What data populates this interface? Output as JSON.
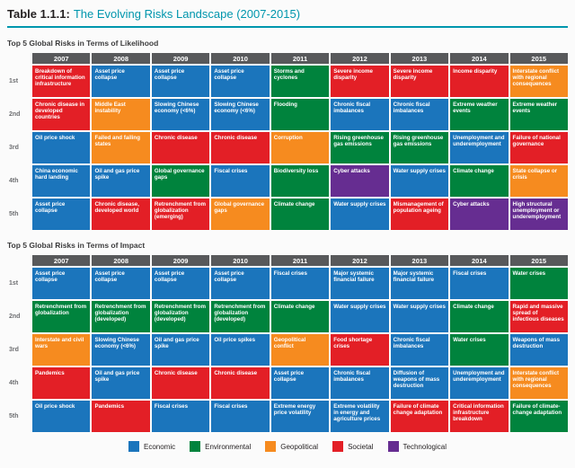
{
  "title": {
    "prefix": "Table 1.1.1:",
    "text": "The Evolving Risks Landscape (2007-2015)"
  },
  "colors": {
    "economic": "#1b75bc",
    "environmental": "#00833d",
    "geopolitical": "#f68b1f",
    "societal": "#e31f26",
    "technological": "#662d91",
    "header_gray": "#58595b",
    "accent_teal": "#0096ad"
  },
  "legend": [
    {
      "label": "Economic",
      "category": "economic"
    },
    {
      "label": "Environmental",
      "category": "environmental"
    },
    {
      "label": "Geopolitical",
      "category": "geopolitical"
    },
    {
      "label": "Societal",
      "category": "societal"
    },
    {
      "label": "Technological",
      "category": "technological"
    }
  ],
  "chart_data": [
    {
      "type": "table",
      "title": "Top 5 Global Risks in Terms of Likelihood",
      "columns": [
        "2007",
        "2008",
        "2009",
        "2010",
        "2011",
        "2012",
        "2013",
        "2014",
        "2015"
      ],
      "rows": [
        "1st",
        "2nd",
        "3rd",
        "4th",
        "5th"
      ],
      "cells": [
        [
          {
            "label": "Breakdown of critical information infrastructure",
            "category": "societal"
          },
          {
            "label": "Asset price collapse",
            "category": "economic"
          },
          {
            "label": "Asset price collapse",
            "category": "economic"
          },
          {
            "label": "Asset price collapse",
            "category": "economic"
          },
          {
            "label": "Storms and cyclones",
            "category": "environmental"
          },
          {
            "label": "Severe income disparity",
            "category": "societal"
          },
          {
            "label": "Severe income disparity",
            "category": "societal"
          },
          {
            "label": "Income disparity",
            "category": "societal"
          },
          {
            "label": "Interstate conflict with regional consequences",
            "category": "geopolitical"
          }
        ],
        [
          {
            "label": "Chronic disease in developed countries",
            "category": "societal"
          },
          {
            "label": "Middle East instability",
            "category": "geopolitical"
          },
          {
            "label": "Slowing Chinese economy (<6%)",
            "category": "economic"
          },
          {
            "label": "Slowing Chinese economy (<6%)",
            "category": "economic"
          },
          {
            "label": "Flooding",
            "category": "environmental"
          },
          {
            "label": "Chronic fiscal imbalances",
            "category": "economic"
          },
          {
            "label": "Chronic fiscal imbalances",
            "category": "economic"
          },
          {
            "label": "Extreme weather events",
            "category": "environmental"
          },
          {
            "label": "Extreme weather events",
            "category": "environmental"
          }
        ],
        [
          {
            "label": "Oil price shock",
            "category": "economic"
          },
          {
            "label": "Failed and failing states",
            "category": "geopolitical"
          },
          {
            "label": "Chronic disease",
            "category": "societal"
          },
          {
            "label": "Chronic disease",
            "category": "societal"
          },
          {
            "label": "Corruption",
            "category": "geopolitical"
          },
          {
            "label": "Rising greenhouse gas emissions",
            "category": "environmental"
          },
          {
            "label": "Rising greenhouse gas emissions",
            "category": "environmental"
          },
          {
            "label": "Unemployment and underemployment",
            "category": "economic"
          },
          {
            "label": "Failure of national governance",
            "category": "societal"
          }
        ],
        [
          {
            "label": "China economic hard landing",
            "category": "economic"
          },
          {
            "label": "Oil and gas price spike",
            "category": "economic"
          },
          {
            "label": "Global governance gaps",
            "category": "environmental"
          },
          {
            "label": "Fiscal crises",
            "category": "economic"
          },
          {
            "label": "Biodiversity loss",
            "category": "environmental"
          },
          {
            "label": "Cyber attacks",
            "category": "technological"
          },
          {
            "label": "Water supply crises",
            "category": "economic"
          },
          {
            "label": "Climate change",
            "category": "environmental"
          },
          {
            "label": "State collapse or crisis",
            "category": "geopolitical"
          }
        ],
        [
          {
            "label": "Asset price collapse",
            "category": "economic"
          },
          {
            "label": "Chronic disease, developed world",
            "category": "societal"
          },
          {
            "label": "Retrenchment from globalization (emerging)",
            "category": "societal"
          },
          {
            "label": "Global governance gaps",
            "category": "geopolitical"
          },
          {
            "label": "Climate change",
            "category": "environmental"
          },
          {
            "label": "Water supply crises",
            "category": "economic"
          },
          {
            "label": "Mismanagement of population ageing",
            "category": "societal"
          },
          {
            "label": "Cyber attacks",
            "category": "technological"
          },
          {
            "label": "High structural unemployment or underemployment",
            "category": "technological"
          }
        ]
      ]
    },
    {
      "type": "table",
      "title": "Top 5 Global Risks in Terms of Impact",
      "columns": [
        "2007",
        "2008",
        "2009",
        "2010",
        "2011",
        "2012",
        "2013",
        "2014",
        "2015"
      ],
      "rows": [
        "1st",
        "2nd",
        "3rd",
        "4th",
        "5th"
      ],
      "cells": [
        [
          {
            "label": "Asset price collapse",
            "category": "economic"
          },
          {
            "label": "Asset price collapse",
            "category": "economic"
          },
          {
            "label": "Asset price collapse",
            "category": "economic"
          },
          {
            "label": "Asset price collapse",
            "category": "economic"
          },
          {
            "label": "Fiscal crises",
            "category": "economic"
          },
          {
            "label": "Major systemic financial failure",
            "category": "economic"
          },
          {
            "label": "Major systemic financial failure",
            "category": "economic"
          },
          {
            "label": "Fiscal crises",
            "category": "economic"
          },
          {
            "label": "Water crises",
            "category": "environmental"
          }
        ],
        [
          {
            "label": "Retrenchment from globalization",
            "category": "environmental"
          },
          {
            "label": "Retrenchment from globalization (developed)",
            "category": "environmental"
          },
          {
            "label": "Retrenchment from globalization (developed)",
            "category": "environmental"
          },
          {
            "label": "Retrenchment from globalization (developed)",
            "category": "environmental"
          },
          {
            "label": "Climate change",
            "category": "environmental"
          },
          {
            "label": "Water supply crises",
            "category": "economic"
          },
          {
            "label": "Water supply crises",
            "category": "economic"
          },
          {
            "label": "Climate change",
            "category": "environmental"
          },
          {
            "label": "Rapid and massive spread of infectious diseases",
            "category": "societal"
          }
        ],
        [
          {
            "label": "Interstate and civil wars",
            "category": "geopolitical"
          },
          {
            "label": "Slowing Chinese economy (<6%)",
            "category": "economic"
          },
          {
            "label": "Oil and gas price spike",
            "category": "economic"
          },
          {
            "label": "Oil price spikes",
            "category": "economic"
          },
          {
            "label": "Geopolitical conflict",
            "category": "geopolitical"
          },
          {
            "label": "Food shortage crises",
            "category": "societal"
          },
          {
            "label": "Chronic fiscal imbalances",
            "category": "economic"
          },
          {
            "label": "Water crises",
            "category": "environmental"
          },
          {
            "label": "Weapons of mass destruction",
            "category": "economic"
          }
        ],
        [
          {
            "label": "Pandemics",
            "category": "societal"
          },
          {
            "label": "Oil and gas price spike",
            "category": "economic"
          },
          {
            "label": "Chronic disease",
            "category": "societal"
          },
          {
            "label": "Chronic disease",
            "category": "societal"
          },
          {
            "label": "Asset price collapse",
            "category": "economic"
          },
          {
            "label": "Chronic fiscal imbalances",
            "category": "economic"
          },
          {
            "label": "Diffusion of weapons of mass destruction",
            "category": "economic"
          },
          {
            "label": "Unemployment and underemployment",
            "category": "economic"
          },
          {
            "label": "Interstate conflict with regional consequences",
            "category": "geopolitical"
          }
        ],
        [
          {
            "label": "Oil price shock",
            "category": "economic"
          },
          {
            "label": "Pandemics",
            "category": "societal"
          },
          {
            "label": "Fiscal crises",
            "category": "economic"
          },
          {
            "label": "Fiscal crises",
            "category": "economic"
          },
          {
            "label": "Extreme energy price volatility",
            "category": "economic"
          },
          {
            "label": "Extreme volatility in energy and agriculture prices",
            "category": "economic"
          },
          {
            "label": "Failure of climate change adaptation",
            "category": "societal"
          },
          {
            "label": "Critical information infrastructure breakdown",
            "category": "societal"
          },
          {
            "label": "Failure of climate-change adaptation",
            "category": "environmental"
          }
        ]
      ]
    }
  ]
}
